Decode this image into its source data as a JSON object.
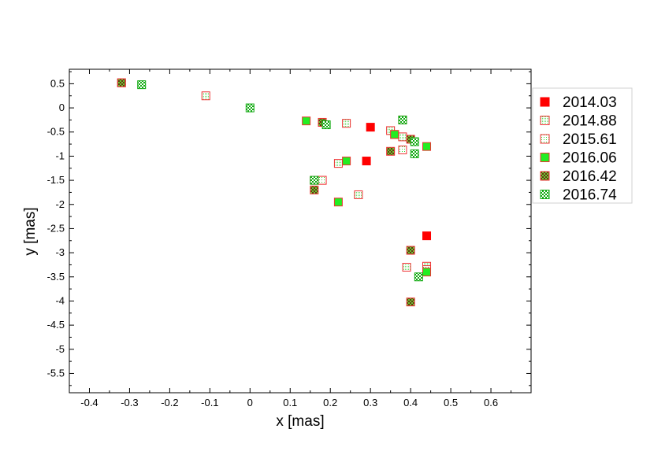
{
  "chart_data": {
    "type": "scatter",
    "title": "",
    "xlabel": "x [mas]",
    "ylabel": "y [mas]",
    "xlim": [
      -0.45,
      0.7
    ],
    "ylim": [
      -5.9,
      0.8
    ],
    "xticks": [
      "-0.4",
      "-0.3",
      "-0.2",
      "-0.1",
      "0",
      "0.1",
      "0.2",
      "0.3",
      "0.4",
      "0.5",
      "0.6"
    ],
    "xtick_values": [
      -0.4,
      -0.3,
      -0.2,
      -0.1,
      0,
      0.1,
      0.2,
      0.3,
      0.4,
      0.5,
      0.6
    ],
    "yticks": [
      "0.5",
      "0",
      "-0.5",
      "-1",
      "-1.5",
      "-2",
      "-2.5",
      "-3",
      "-3.5",
      "-4",
      "-4.5",
      "-5",
      "-5.5"
    ],
    "ytick_values": [
      0.5,
      0,
      -0.5,
      -1,
      -1.5,
      -2,
      -2.5,
      -3,
      -3.5,
      -4,
      -4.5,
      -5,
      -5.5
    ],
    "grid": false,
    "legend_position": "right",
    "series": [
      {
        "name": "2014.03",
        "marker": "filled",
        "fill": "#ff0000",
        "stroke": "#ff0000",
        "points": [
          [
            0.3,
            -0.4
          ],
          [
            0.29,
            -1.1
          ],
          [
            0.44,
            -2.65
          ]
        ]
      },
      {
        "name": "2014.88",
        "marker": "fine-dots",
        "fill": "#ffffff",
        "stroke": "#ee3333",
        "dot": "#66dd66",
        "points": [
          [
            -0.11,
            0.25
          ],
          [
            0.24,
            -0.32
          ],
          [
            0.35,
            -0.47
          ],
          [
            0.38,
            -0.6
          ],
          [
            0.22,
            -1.15
          ],
          [
            0.27,
            -1.8
          ],
          [
            0.39,
            -3.3
          ],
          [
            0.44,
            -3.28
          ],
          [
            0.18,
            -1.5
          ]
        ]
      },
      {
        "name": "2015.61",
        "marker": "coarse-dots",
        "fill": "#ffffff",
        "stroke": "#ee3333",
        "dot": "#33dd33",
        "points": [
          [
            -0.32,
            0.52
          ],
          [
            0.18,
            -0.3
          ],
          [
            0.36,
            -0.55
          ],
          [
            0.38,
            -0.87
          ],
          [
            0.16,
            -1.5
          ],
          [
            0.18,
            -1.5
          ],
          [
            0.44,
            -3.35
          ]
        ]
      },
      {
        "name": "2016.06",
        "marker": "filled",
        "fill": "#22ee22",
        "stroke": "#ee3333",
        "points": [
          [
            0.14,
            -0.27
          ],
          [
            0.24,
            -1.1
          ],
          [
            0.22,
            -1.95
          ],
          [
            0.44,
            -0.8
          ],
          [
            0.36,
            -0.55
          ],
          [
            0.44,
            -3.4
          ]
        ]
      },
      {
        "name": "2016.42",
        "marker": "checker",
        "fill": "#66cc33",
        "stroke": "#ee3333",
        "dot": "#663311",
        "points": [
          [
            -0.32,
            0.52
          ],
          [
            0.18,
            -0.3
          ],
          [
            0.38,
            -0.25
          ],
          [
            0.35,
            -0.9
          ],
          [
            0.4,
            -0.65
          ],
          [
            0.16,
            -1.7
          ],
          [
            0.4,
            -2.95
          ],
          [
            0.4,
            -4.02
          ]
        ]
      },
      {
        "name": "2016.74",
        "marker": "checker",
        "fill": "#11aa11",
        "stroke": "#11aa11",
        "dot": "#ffffff",
        "points": [
          [
            -0.27,
            0.48
          ],
          [
            0.0,
            0.0
          ],
          [
            0.19,
            -0.35
          ],
          [
            0.38,
            -0.25
          ],
          [
            0.41,
            -0.7
          ],
          [
            0.41,
            -0.95
          ],
          [
            0.16,
            -1.5
          ],
          [
            0.42,
            -3.5
          ]
        ]
      }
    ]
  }
}
